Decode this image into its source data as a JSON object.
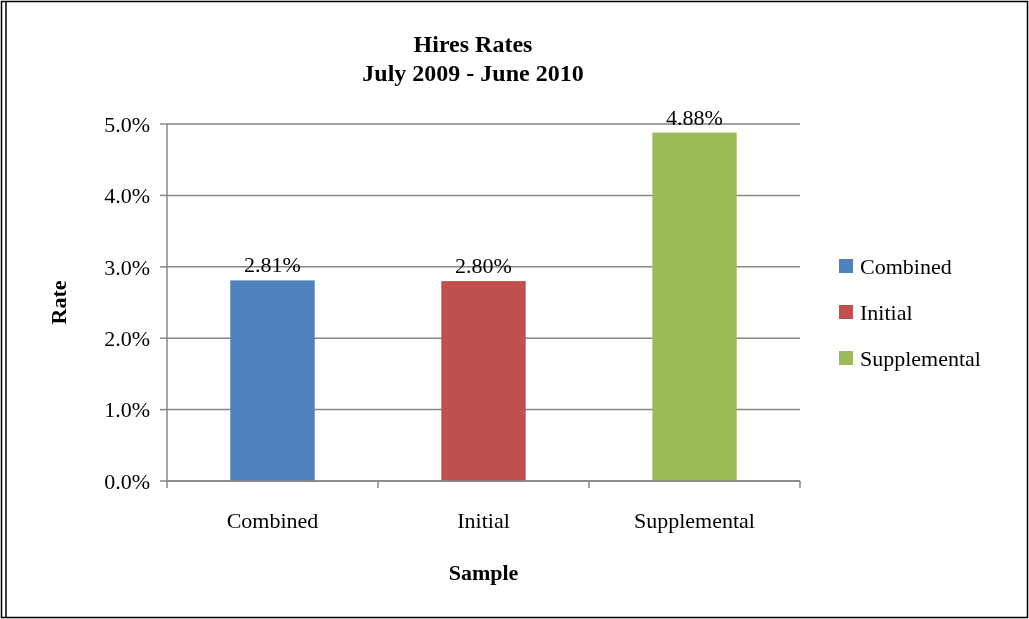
{
  "chart_data": {
    "type": "bar",
    "title": "Hires Rates\nJuly 2009 - June 2010",
    "xlabel": "Sample",
    "ylabel": "Rate",
    "categories": [
      "Combined",
      "Initial",
      "Supplemental"
    ],
    "series": [
      {
        "name": "Combined",
        "color": "#4f81bd",
        "values": [
          2.81,
          null,
          null
        ],
        "value_labels": [
          "2.81%",
          null,
          null
        ]
      },
      {
        "name": "Initial",
        "color": "#c0504d",
        "values": [
          null,
          2.8,
          null
        ],
        "value_labels": [
          null,
          "2.80%",
          null
        ]
      },
      {
        "name": "Supplemental",
        "color": "#9bbb59",
        "values": [
          null,
          null,
          4.88
        ],
        "value_labels": [
          null,
          null,
          "4.88%"
        ]
      }
    ],
    "ylim": [
      0,
      5
    ],
    "yticks": [
      {
        "value": 0,
        "label": "0.0%"
      },
      {
        "value": 1,
        "label": "1.0%"
      },
      {
        "value": 2,
        "label": "2.0%"
      },
      {
        "value": 3,
        "label": "3.0%"
      },
      {
        "value": 4,
        "label": "4.0%"
      },
      {
        "value": 5,
        "label": "5.0%"
      }
    ],
    "grid": "y",
    "legend": "right"
  }
}
